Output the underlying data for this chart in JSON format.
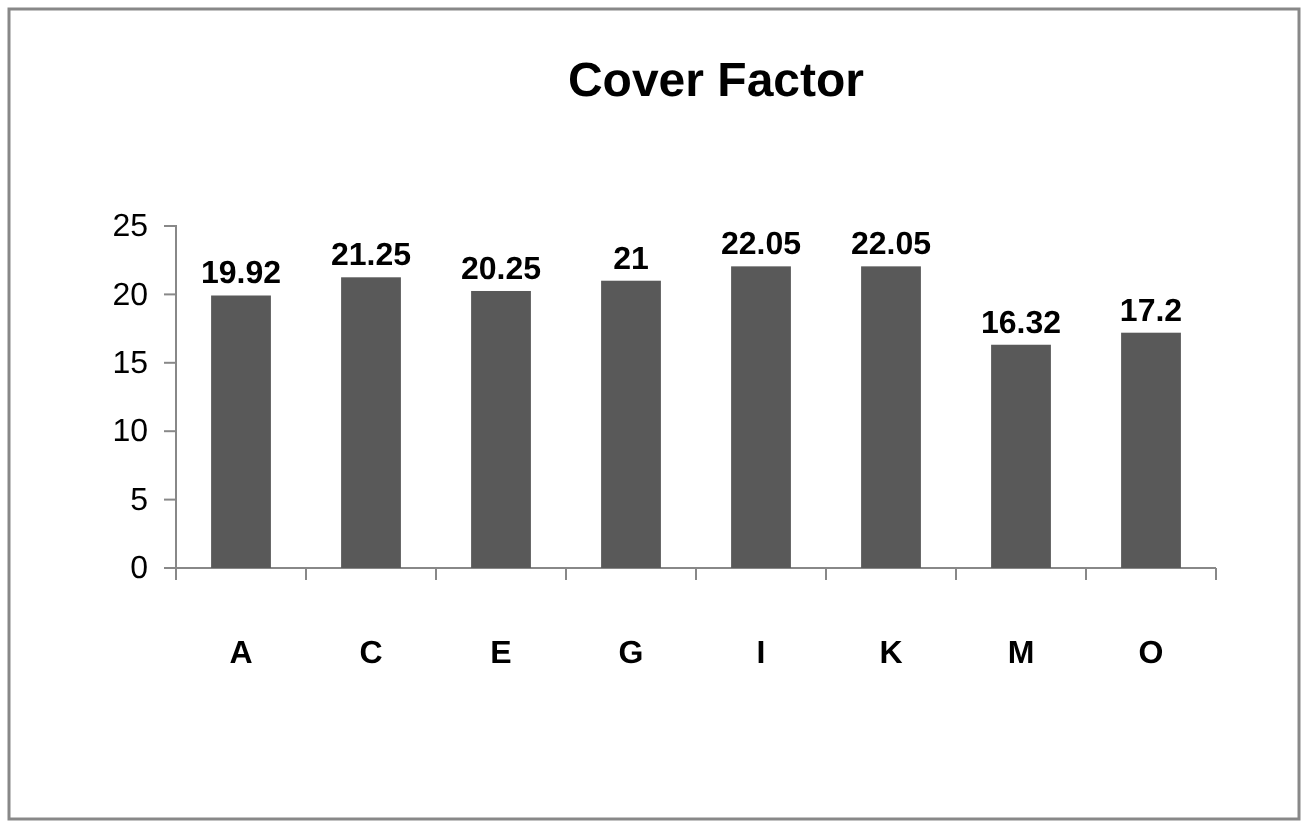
{
  "chart_data": {
    "type": "bar",
    "title": "Cover Factor",
    "categories": [
      "A",
      "C",
      "E",
      "G",
      "I",
      "K",
      "M",
      "O"
    ],
    "values": [
      19.92,
      21.25,
      20.25,
      21,
      22.05,
      22.05,
      16.32,
      17.2
    ],
    "color": "#595959",
    "ylim": [
      0,
      25
    ],
    "yticks": [
      0,
      5,
      10,
      15,
      20,
      25
    ],
    "grid": false,
    "data_labels": true
  }
}
